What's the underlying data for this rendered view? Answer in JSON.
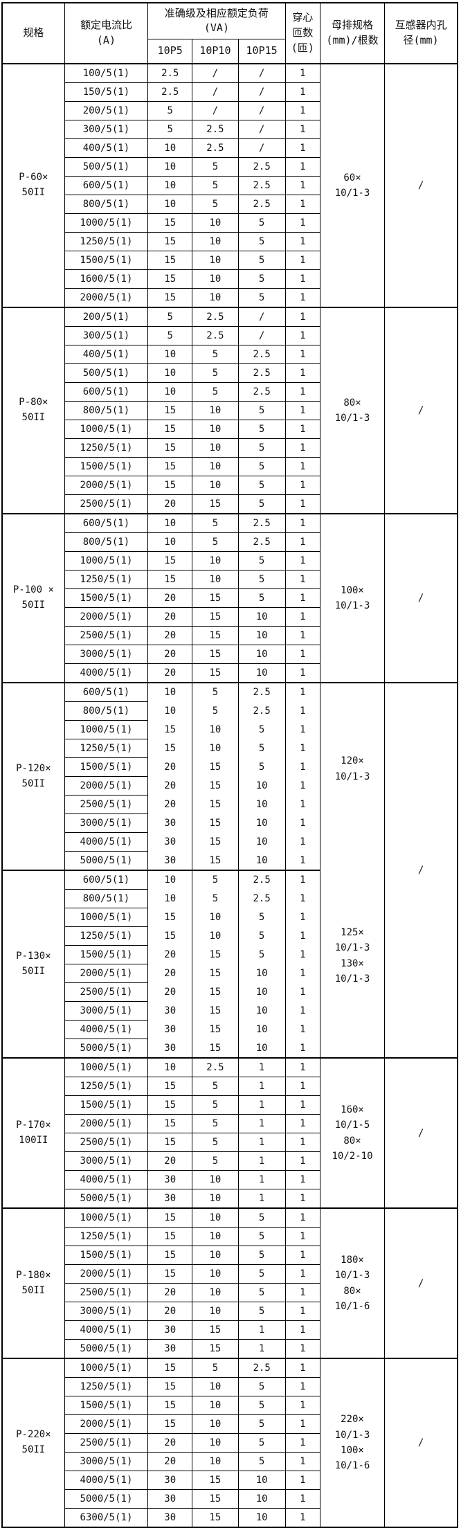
{
  "page": {
    "background": "#ffffff",
    "line_color": "#000000",
    "text_color": "#111111"
  },
  "table": {
    "header": {
      "spec": "规格",
      "ratio": "额定电流比\n(A)",
      "accuracy_title": "准确级及相应额定负荷\n(VA)",
      "load_cols": [
        "10P5",
        "10P10",
        "10P15"
      ],
      "turns": "穿心\n匝数\n(匝)",
      "busbar": "母排规格\n(mm)/根数",
      "hole": "互感器内孔\n径(mm)"
    },
    "sections": [
      {
        "spec": "P-60×\n50II",
        "busbar_blocks": [
          [
            "60×",
            "10/1-3"
          ]
        ],
        "hole": "/",
        "no_row_borders": false,
        "rows": [
          [
            "100/5(1)",
            "2.5",
            "/",
            "/",
            "1"
          ],
          [
            "150/5(1)",
            "2.5",
            "/",
            "/",
            "1"
          ],
          [
            "200/5(1)",
            "5",
            "/",
            "/",
            "1"
          ],
          [
            "300/5(1)",
            "5",
            "2.5",
            "/",
            "1"
          ],
          [
            "400/5(1)",
            "10",
            "2.5",
            "/",
            "1"
          ],
          [
            "500/5(1)",
            "10",
            "5",
            "2.5",
            "1"
          ],
          [
            "600/5(1)",
            "10",
            "5",
            "2.5",
            "1"
          ],
          [
            "800/5(1)",
            "10",
            "5",
            "2.5",
            "1"
          ],
          [
            "1000/5(1)",
            "15",
            "10",
            "5",
            "1"
          ],
          [
            "1250/5(1)",
            "15",
            "10",
            "5",
            "1"
          ],
          [
            "1500/5(1)",
            "15",
            "10",
            "5",
            "1"
          ],
          [
            "1600/5(1)",
            "15",
            "10",
            "5",
            "1"
          ],
          [
            "2000/5(1)",
            "15",
            "10",
            "5",
            "1"
          ]
        ]
      },
      {
        "spec": "P-80×\n50II",
        "busbar_blocks": [
          [
            "80×",
            "10/1-3"
          ]
        ],
        "hole": "/",
        "no_row_borders": false,
        "rows": [
          [
            "200/5(1)",
            "5",
            "2.5",
            "/",
            "1"
          ],
          [
            "300/5(1)",
            "5",
            "2.5",
            "/",
            "1"
          ],
          [
            "400/5(1)",
            "10",
            "5",
            "2.5",
            "1"
          ],
          [
            "500/5(1)",
            "10",
            "5",
            "2.5",
            "1"
          ],
          [
            "600/5(1)",
            "10",
            "5",
            "2.5",
            "1"
          ],
          [
            "800/5(1)",
            "15",
            "10",
            "5",
            "1"
          ],
          [
            "1000/5(1)",
            "15",
            "10",
            "5",
            "1"
          ],
          [
            "1250/5(1)",
            "15",
            "10",
            "5",
            "1"
          ],
          [
            "1500/5(1)",
            "15",
            "10",
            "5",
            "1"
          ],
          [
            "2000/5(1)",
            "15",
            "10",
            "5",
            "1"
          ],
          [
            "2500/5(1)",
            "20",
            "15",
            "5",
            "1"
          ]
        ]
      },
      {
        "spec": "P-100 ×\n50II",
        "busbar_blocks": [
          [
            "100×",
            "10/1-3"
          ]
        ],
        "hole": "/",
        "no_row_borders": false,
        "rows": [
          [
            "600/5(1)",
            "10",
            "5",
            "2.5",
            "1"
          ],
          [
            "800/5(1)",
            "10",
            "5",
            "2.5",
            "1"
          ],
          [
            "1000/5(1)",
            "15",
            "10",
            "5",
            "1"
          ],
          [
            "1250/5(1)",
            "15",
            "10",
            "5",
            "1"
          ],
          [
            "1500/5(1)",
            "20",
            "15",
            "5",
            "1"
          ],
          [
            "2000/5(1)",
            "20",
            "15",
            "10",
            "1"
          ],
          [
            "2500/5(1)",
            "20",
            "15",
            "10",
            "1"
          ],
          [
            "3000/5(1)",
            "20",
            "15",
            "10",
            "1"
          ],
          [
            "4000/5(1)",
            "20",
            "15",
            "10",
            "1"
          ]
        ]
      },
      {
        "spec": "P-120×\n50II",
        "busbar_blocks": [
          [
            "120×",
            "10/1-3"
          ],
          [
            "125×",
            "10/1-3",
            "130×",
            "10/1-3"
          ]
        ],
        "hole": "/",
        "merge_right_with_next": true,
        "no_row_borders": true,
        "rows": [
          [
            "600/5(1)",
            "10",
            "5",
            "2.5",
            "1"
          ],
          [
            "800/5(1)",
            "10",
            "5",
            "2.5",
            "1"
          ],
          [
            "1000/5(1)",
            "15",
            "10",
            "5",
            "1"
          ],
          [
            "1250/5(1)",
            "15",
            "10",
            "5",
            "1"
          ],
          [
            "1500/5(1)",
            "20",
            "15",
            "5",
            "1"
          ],
          [
            "2000/5(1)",
            "20",
            "15",
            "10",
            "1"
          ],
          [
            "2500/5(1)",
            "20",
            "15",
            "10",
            "1"
          ],
          [
            "3000/5(1)",
            "30",
            "15",
            "10",
            "1"
          ],
          [
            "4000/5(1)",
            "30",
            "15",
            "10",
            "1"
          ],
          [
            "5000/5(1)",
            "30",
            "15",
            "10",
            "1"
          ]
        ]
      },
      {
        "spec": "P-130×\n50II",
        "busbar_blocks": null,
        "hole": null,
        "merged_right": true,
        "no_row_borders": true,
        "rows": [
          [
            "600/5(1)",
            "10",
            "5",
            "2.5",
            "1"
          ],
          [
            "800/5(1)",
            "10",
            "5",
            "2.5",
            "1"
          ],
          [
            "1000/5(1)",
            "15",
            "10",
            "5",
            "1"
          ],
          [
            "1250/5(1)",
            "15",
            "10",
            "5",
            "1"
          ],
          [
            "1500/5(1)",
            "20",
            "15",
            "5",
            "1"
          ],
          [
            "2000/5(1)",
            "20",
            "15",
            "10",
            "1"
          ],
          [
            "2500/5(1)",
            "20",
            "15",
            "10",
            "1"
          ],
          [
            "3000/5(1)",
            "30",
            "15",
            "10",
            "1"
          ],
          [
            "4000/5(1)",
            "30",
            "15",
            "10",
            "1"
          ],
          [
            "5000/5(1)",
            "30",
            "15",
            "10",
            "1"
          ]
        ]
      },
      {
        "spec": "P-170×\n100II",
        "busbar_blocks": [
          [
            "160×",
            "10/1-5",
            "80×",
            "10/2-10"
          ]
        ],
        "hole": "/",
        "no_row_borders": false,
        "rows": [
          [
            "1000/5(1)",
            "10",
            "2.5",
            "1",
            "1"
          ],
          [
            "1250/5(1)",
            "15",
            "5",
            "1",
            "1"
          ],
          [
            "1500/5(1)",
            "15",
            "5",
            "1",
            "1"
          ],
          [
            "2000/5(1)",
            "15",
            "5",
            "1",
            "1"
          ],
          [
            "2500/5(1)",
            "15",
            "5",
            "1",
            "1"
          ],
          [
            "3000/5(1)",
            "20",
            "5",
            "1",
            "1"
          ],
          [
            "4000/5(1)",
            "30",
            "10",
            "1",
            "1"
          ],
          [
            "5000/5(1)",
            "30",
            "10",
            "1",
            "1"
          ]
        ]
      },
      {
        "spec": "P-180×\n50II",
        "busbar_blocks": [
          [
            "180×",
            "10/1-3",
            "80×",
            "10/1-6"
          ]
        ],
        "hole": "/",
        "no_row_borders": false,
        "rows": [
          [
            "1000/5(1)",
            "15",
            "10",
            "5",
            "1"
          ],
          [
            "1250/5(1)",
            "15",
            "10",
            "5",
            "1"
          ],
          [
            "1500/5(1)",
            "15",
            "10",
            "5",
            "1"
          ],
          [
            "2000/5(1)",
            "15",
            "10",
            "5",
            "1"
          ],
          [
            "2500/5(1)",
            "20",
            "10",
            "5",
            "1"
          ],
          [
            "3000/5(1)",
            "20",
            "10",
            "5",
            "1"
          ],
          [
            "4000/5(1)",
            "30",
            "15",
            "1",
            "1"
          ],
          [
            "5000/5(1)",
            "30",
            "15",
            "1",
            "1"
          ]
        ]
      },
      {
        "spec": "P-220×\n50II",
        "busbar_blocks": [
          [
            "220×",
            "10/1-3",
            "100×",
            "10/1-6"
          ]
        ],
        "hole": "/",
        "no_row_borders": false,
        "rows": [
          [
            "1000/5(1)",
            "15",
            "5",
            "2.5",
            "1"
          ],
          [
            "1250/5(1)",
            "15",
            "10",
            "5",
            "1"
          ],
          [
            "1500/5(1)",
            "15",
            "10",
            "5",
            "1"
          ],
          [
            "2000/5(1)",
            "15",
            "10",
            "5",
            "1"
          ],
          [
            "2500/5(1)",
            "20",
            "10",
            "5",
            "1"
          ],
          [
            "3000/5(1)",
            "20",
            "10",
            "5",
            "1"
          ],
          [
            "4000/5(1)",
            "30",
            "15",
            "10",
            "1"
          ],
          [
            "5000/5(1)",
            "30",
            "15",
            "10",
            "1"
          ],
          [
            "6300/5(1)",
            "30",
            "15",
            "10",
            "1"
          ]
        ]
      }
    ]
  }
}
